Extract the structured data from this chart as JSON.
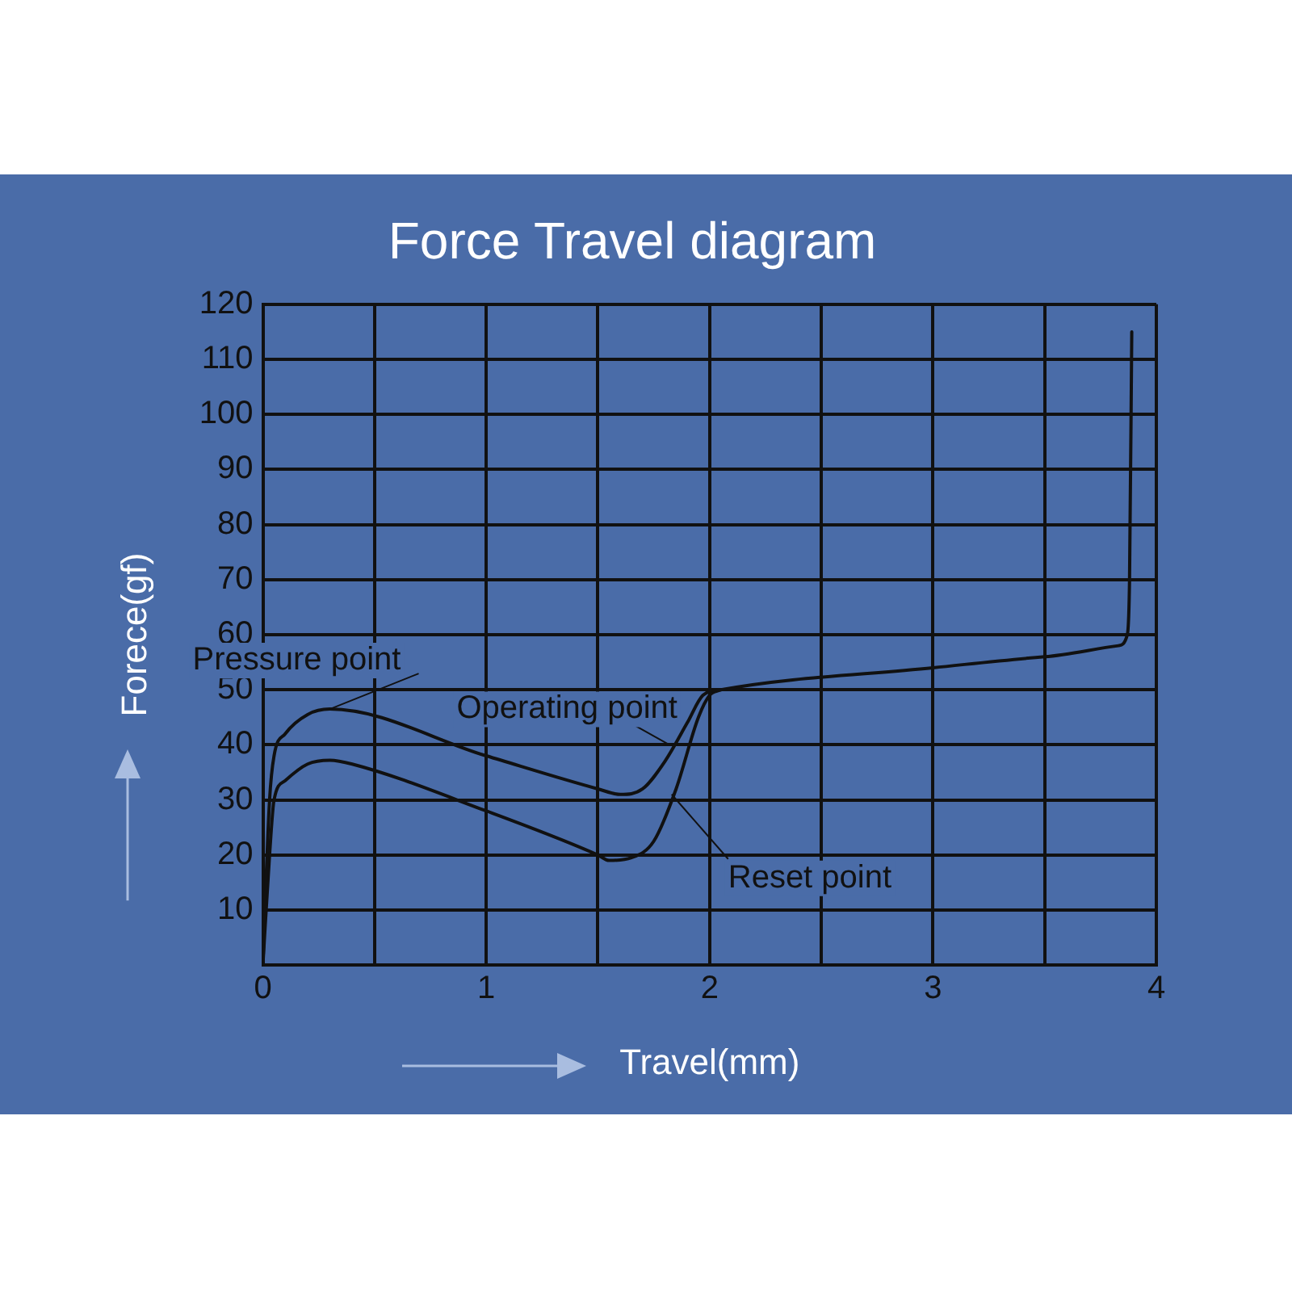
{
  "chart_data": {
    "type": "line",
    "title": "Force Travel diagram",
    "xlabel": "Travel(mm)",
    "ylabel": "Forece(gf)",
    "xlim": [
      0,
      4
    ],
    "xticks": [
      0,
      {
        "value": 0.5,
        "label": null
      },
      1,
      {
        "value": 1.5,
        "label": null
      },
      2,
      {
        "value": 2.5,
        "label": null
      },
      3,
      {
        "value": 3.5,
        "label": null
      },
      4
    ],
    "ylim": [
      0,
      120
    ],
    "yticks": [
      10,
      20,
      30,
      40,
      50,
      60,
      70,
      80,
      90,
      100,
      110,
      120
    ],
    "grid": true,
    "legend": false,
    "marker": "none",
    "line_style": "solid",
    "series": [
      {
        "color": "#111111",
        "x": [
          0,
          0.03,
          0.05,
          0.1,
          0.2,
          0.3,
          1.0,
          1.5,
          1.6,
          1.7,
          1.8,
          1.9,
          1.97,
          2.05,
          3.0,
          3.5,
          3.83,
          3.87,
          3.88,
          3.89
        ],
        "values": [
          0,
          30,
          38,
          42,
          45.5,
          46.5,
          38,
          32,
          31,
          32,
          37,
          44,
          49,
          50,
          54,
          56,
          58,
          60,
          70,
          115
        ]
      },
      {
        "color": "#111111",
        "x": [
          0,
          0.03,
          0.05,
          0.1,
          0.2,
          0.3,
          0.4,
          1.0,
          1.5,
          1.55,
          1.65,
          1.75,
          1.85,
          1.95,
          2.0,
          2.05
        ],
        "values": [
          0,
          20,
          30,
          33.5,
          36.5,
          37.2,
          36.5,
          28,
          20,
          19,
          19.5,
          22.5,
          32,
          45,
          49,
          50
        ]
      }
    ],
    "annotations": [
      {
        "text": "Pressure point",
        "x": 0.3,
        "y": 46.5
      },
      {
        "text": "Operating point",
        "x": 1.82,
        "y": 40
      },
      {
        "text": "Reset point",
        "x": 1.83,
        "y": 31
      }
    ]
  }
}
